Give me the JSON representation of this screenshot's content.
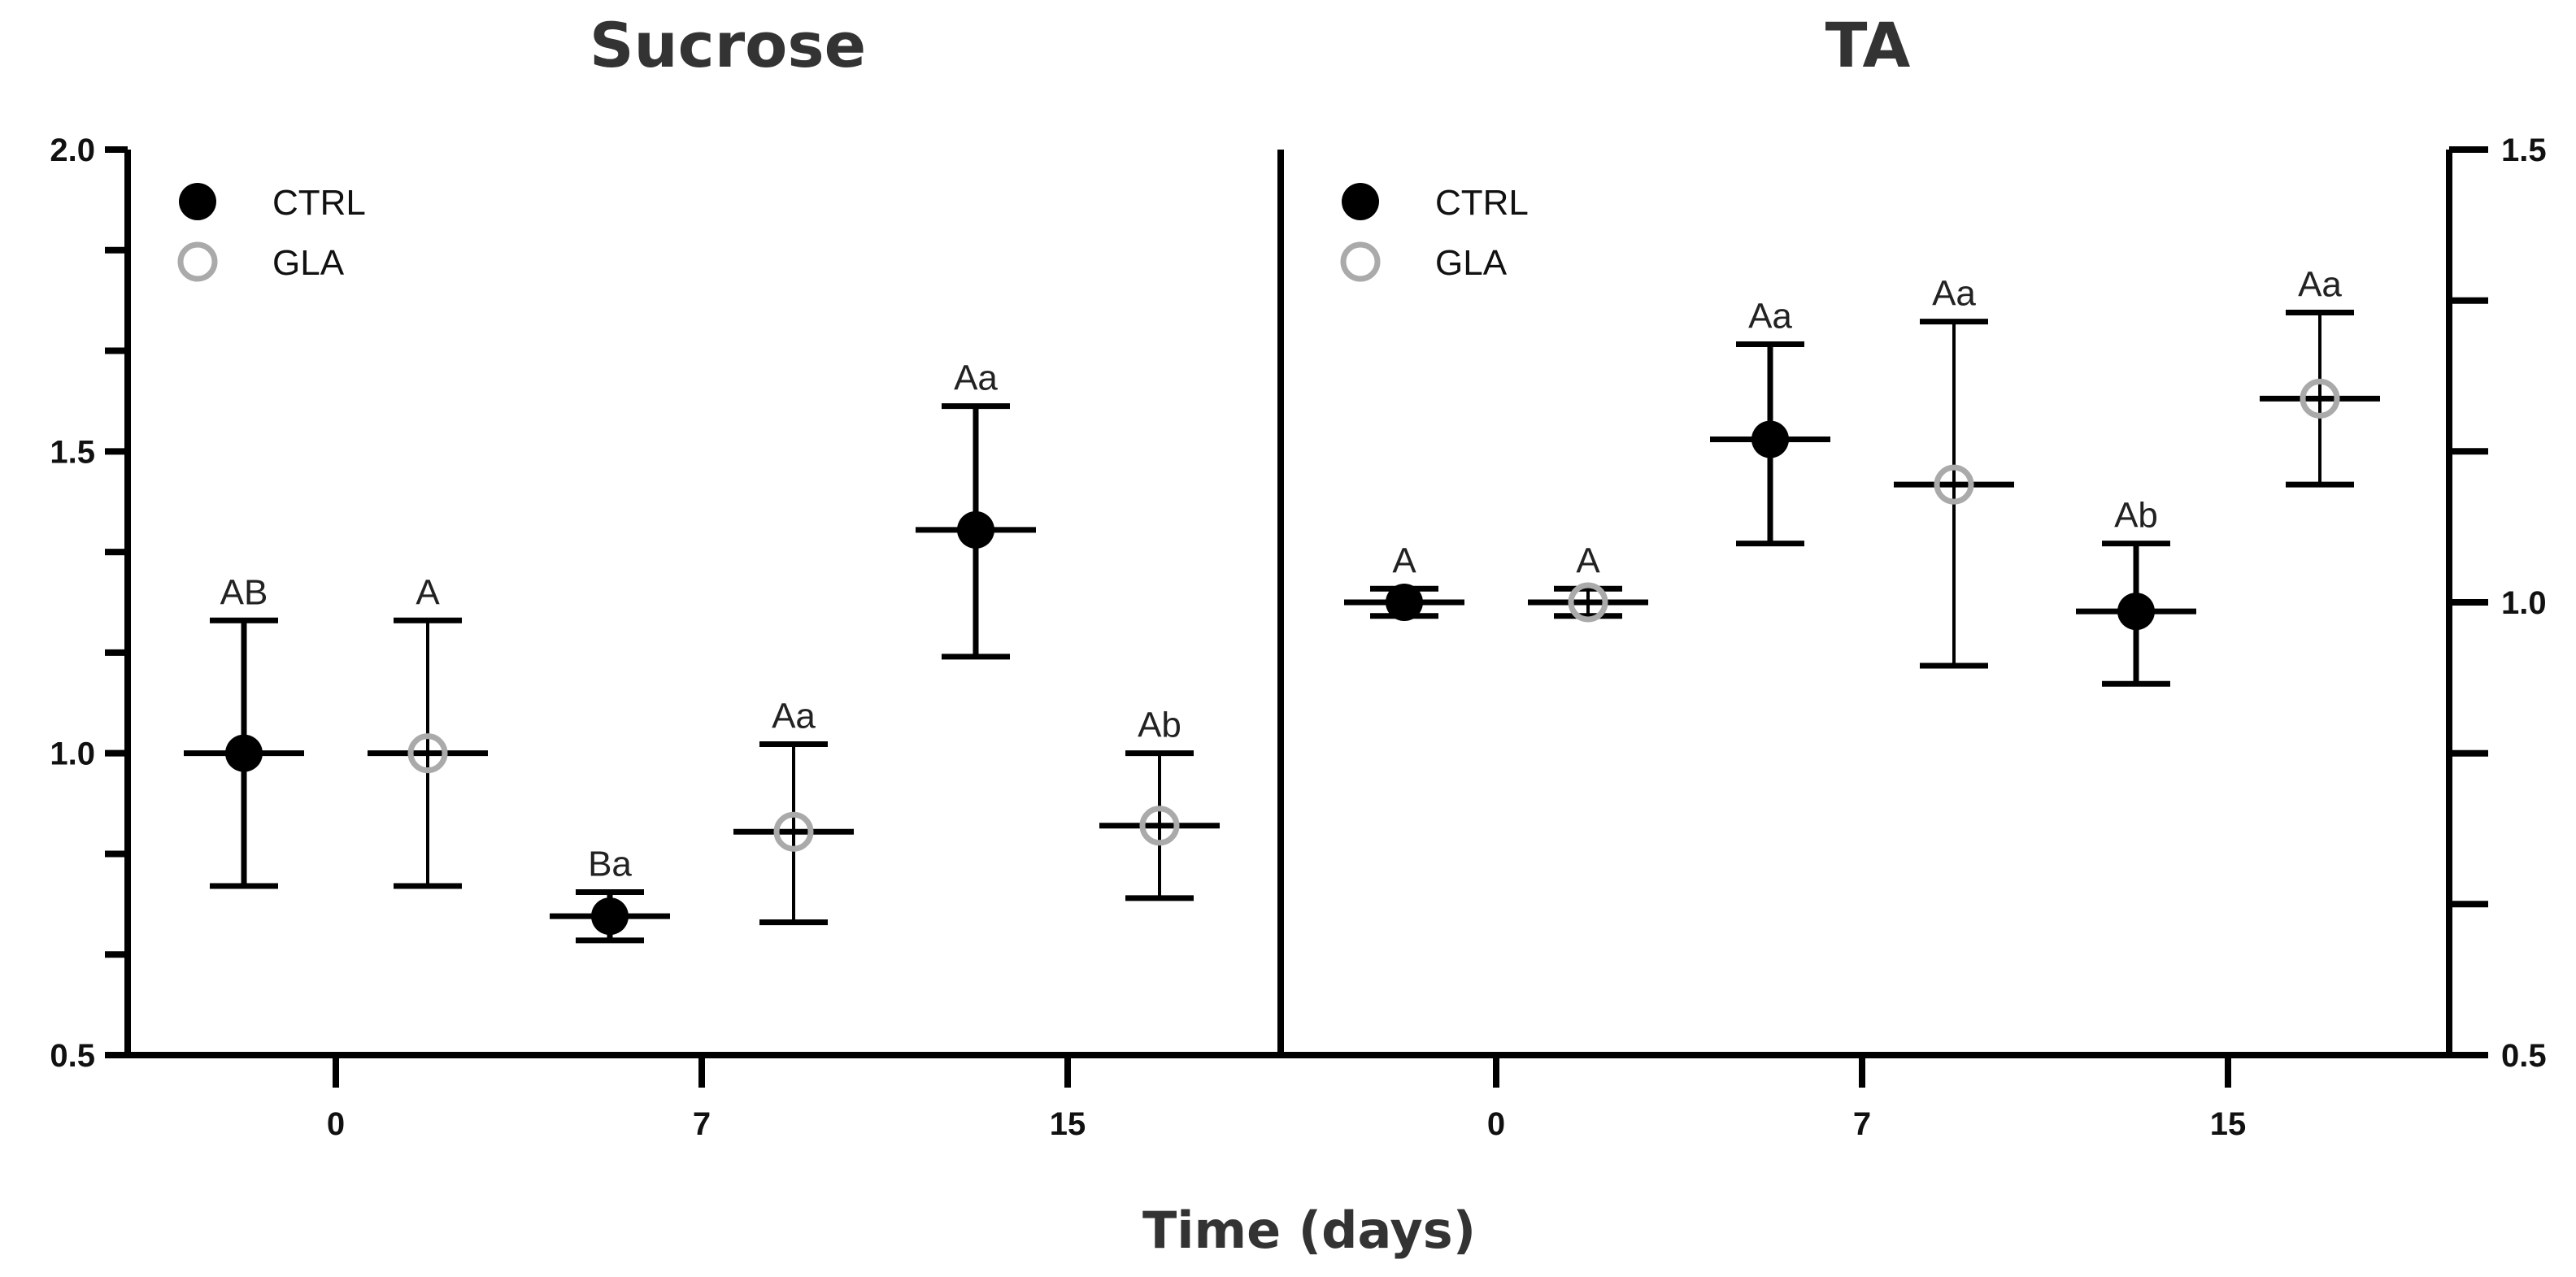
{
  "xlabel": "Time (days)",
  "colors": {
    "ctrl": "#000000",
    "gla": "#aaaaaa",
    "axis": "#000000"
  },
  "chart_data": [
    {
      "type": "scatter",
      "title": "Sucrose",
      "xlabel": "Time (days)",
      "ylabel": "",
      "categories": [
        "0",
        "7",
        "15"
      ],
      "ylim": [
        0.5,
        2.0
      ],
      "yticks": [
        0.5,
        1.0,
        1.5,
        2.0
      ],
      "ytick_labels": [
        "0.5",
        "1.0",
        "1.5",
        "2.0"
      ],
      "legend": [
        "CTRL",
        "GLA"
      ],
      "legend_position": "top-left",
      "series": [
        {
          "name": "CTRL",
          "marker": "filled-circle",
          "values": [
            1.0,
            0.73,
            1.37
          ],
          "err_low": [
            0.78,
            0.69,
            1.16
          ],
          "err_high": [
            1.22,
            0.77,
            1.575
          ],
          "labels": [
            "AB",
            "Ba",
            "Aa"
          ]
        },
        {
          "name": "GLA",
          "marker": "open-circle",
          "values": [
            1.0,
            0.87,
            0.88
          ],
          "err_low": [
            0.78,
            0.72,
            0.76
          ],
          "err_high": [
            1.22,
            1.015,
            1.0
          ],
          "labels": [
            "A",
            "Aa",
            "Ab"
          ]
        }
      ]
    },
    {
      "type": "scatter",
      "title": "TA",
      "xlabel": "Time (days)",
      "ylabel": "",
      "categories": [
        "0",
        "7",
        "15"
      ],
      "ylim": [
        0.5,
        1.5
      ],
      "yticks": [
        0.5,
        0.6667,
        0.8333,
        1.0,
        1.1667,
        1.3333,
        1.5
      ],
      "ytick_labels": [
        "0.5",
        "",
        "",
        "1.0",
        "",
        "",
        "1.5"
      ],
      "legend": [
        "CTRL",
        "GLA"
      ],
      "legend_position": "top-left",
      "series": [
        {
          "name": "CTRL",
          "marker": "filled-circle",
          "values": [
            1.0,
            1.18,
            0.99
          ],
          "err_low": [
            0.985,
            1.065,
            0.91
          ],
          "err_high": [
            1.015,
            1.285,
            1.065
          ],
          "labels": [
            "A",
            "Aa",
            "Ab"
          ]
        },
        {
          "name": "GLA",
          "marker": "open-circle",
          "values": [
            1.0,
            1.13,
            1.225
          ],
          "err_low": [
            0.985,
            0.93,
            1.13
          ],
          "err_high": [
            1.015,
            1.31,
            1.32
          ],
          "labels": [
            "A",
            "Aa",
            "Aa"
          ]
        }
      ]
    }
  ]
}
